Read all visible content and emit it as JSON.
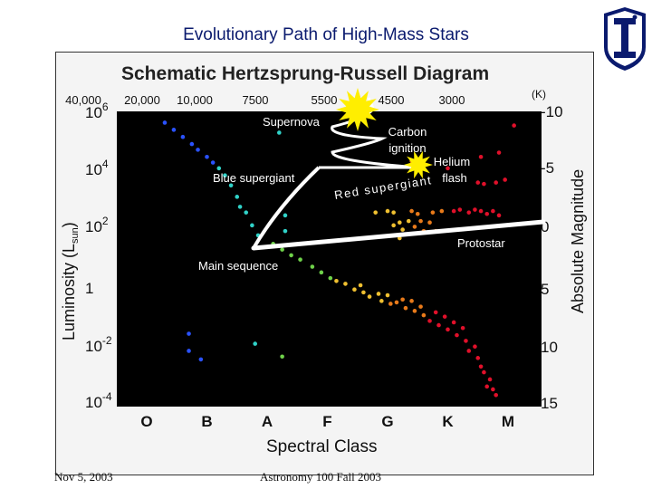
{
  "slide": {
    "title": "Evolutionary Path of High-Mass Stars",
    "footer_left": "Nov 5, 2003",
    "footer_center": "Astronomy 100 Fall 2003"
  },
  "chart_data": {
    "type": "scatter",
    "title": "Schematic Hertzsprung-Russell Diagram",
    "xlabel": "Spectral Class",
    "ylabel": "Luminosity (Lsun)",
    "ylabel_right": "Absolute Magnitude",
    "spectral_classes": [
      "O",
      "B",
      "A",
      "F",
      "G",
      "K",
      "M"
    ],
    "temperature_ticks": [
      "40,000",
      "20,000",
      "10,000",
      "7500",
      "5500",
      "4500",
      "3000"
    ],
    "temperature_unit": "(K)",
    "luminosity_ticks": [
      {
        "base": "10",
        "exp": "6"
      },
      {
        "base": "10",
        "exp": "4"
      },
      {
        "base": "10",
        "exp": "2"
      },
      {
        "base": "1",
        "exp": ""
      },
      {
        "base": "10",
        "exp": "-2"
      },
      {
        "base": "10",
        "exp": "-4"
      }
    ],
    "magnitude_ticks": [
      "-10",
      "-5",
      "0",
      "5",
      "10",
      "15"
    ],
    "annotations": [
      "Supernova",
      "Carbon ignition",
      "Helium flash",
      "Blue supergiant",
      "Red supergiant",
      "Protostar",
      "Main sequence"
    ],
    "colors": {
      "background": "#000000",
      "o_stars": "#2a52ff",
      "b_stars": "#30d2c8",
      "a_stars": "#6fd24a",
      "g_stars": "#f0b020",
      "k_stars": "#e8701a",
      "m_stars": "#e0102a",
      "path": "#ffffff",
      "burst": "#ffee00"
    },
    "point_groups": [
      {
        "name": "O",
        "color": "#2a52ff",
        "points": [
          [
            0.3,
            5.7
          ],
          [
            0.45,
            5.45
          ],
          [
            0.6,
            5.2
          ],
          [
            0.75,
            4.95
          ],
          [
            0.85,
            4.75
          ],
          [
            1.0,
            4.5
          ],
          [
            1.1,
            4.3
          ],
          [
            0.7,
            -1.7
          ],
          [
            0.7,
            -2.3
          ],
          [
            0.9,
            -2.6
          ]
        ]
      },
      {
        "name": "B",
        "color": "#30d2c8",
        "points": [
          [
            1.2,
            4.1
          ],
          [
            1.3,
            3.85
          ],
          [
            1.4,
            3.5
          ],
          [
            1.5,
            3.1
          ],
          [
            1.55,
            2.75
          ],
          [
            1.65,
            2.55
          ],
          [
            1.75,
            2.1
          ],
          [
            1.85,
            1.75
          ],
          [
            2.2,
            5.35
          ],
          [
            2.3,
            2.45
          ],
          [
            2.3,
            1.9
          ],
          [
            1.8,
            -2.05
          ]
        ]
      },
      {
        "name": "A",
        "color": "#6fd24a",
        "points": [
          [
            2.1,
            1.45
          ],
          [
            2.25,
            1.25
          ],
          [
            2.4,
            1.05
          ],
          [
            2.55,
            0.9
          ],
          [
            2.75,
            0.65
          ],
          [
            2.9,
            0.45
          ],
          [
            3.05,
            0.25
          ],
          [
            2.25,
            -2.5
          ]
        ]
      },
      {
        "name": "F",
        "color": "#f0c030",
        "points": [
          [
            3.15,
            0.15
          ],
          [
            3.3,
            0.05
          ],
          [
            3.45,
            -0.15
          ],
          [
            3.55,
            0.0
          ],
          [
            3.6,
            -0.25
          ],
          [
            3.7,
            -0.4
          ],
          [
            3.85,
            -0.3
          ],
          [
            3.9,
            -0.55
          ],
          [
            4.0,
            -0.35
          ],
          [
            3.8,
            2.55
          ],
          [
            4.0,
            2.6
          ],
          [
            4.1,
            2.1
          ],
          [
            4.2,
            2.2
          ],
          [
            4.25,
            1.95
          ],
          [
            4.35,
            2.25
          ],
          [
            4.1,
            2.55
          ],
          [
            4.2,
            1.65
          ]
        ]
      },
      {
        "name": "G",
        "color": "#e87a1a",
        "points": [
          [
            4.05,
            -0.65
          ],
          [
            4.15,
            -0.6
          ],
          [
            4.25,
            -0.5
          ],
          [
            4.3,
            -0.8
          ],
          [
            4.4,
            -0.55
          ],
          [
            4.45,
            -0.9
          ],
          [
            4.55,
            -0.75
          ],
          [
            4.6,
            -1.05
          ],
          [
            4.4,
            2.6
          ],
          [
            4.5,
            2.5
          ],
          [
            4.45,
            2.05
          ],
          [
            4.6,
            1.9
          ],
          [
            4.55,
            2.25
          ],
          [
            4.7,
            2.2
          ],
          [
            4.8,
            1.9
          ],
          [
            4.75,
            2.55
          ],
          [
            4.9,
            2.6
          ],
          [
            4.4,
            4.35
          ]
        ]
      },
      {
        "name": "M",
        "color": "#e0102a",
        "points": [
          [
            4.7,
            -1.25
          ],
          [
            4.8,
            -0.95
          ],
          [
            4.85,
            -1.4
          ],
          [
            4.95,
            -1.1
          ],
          [
            5.0,
            -1.55
          ],
          [
            5.1,
            -1.3
          ],
          [
            5.15,
            -1.75
          ],
          [
            5.25,
            -1.5
          ],
          [
            5.3,
            -1.95
          ],
          [
            5.35,
            -2.3
          ],
          [
            5.45,
            -2.15
          ],
          [
            5.5,
            -2.55
          ],
          [
            5.55,
            -2.85
          ],
          [
            5.6,
            -3.05
          ],
          [
            5.7,
            -3.3
          ],
          [
            5.75,
            -3.65
          ],
          [
            5.65,
            -3.55
          ],
          [
            5.8,
            -3.85
          ],
          [
            5.1,
            2.6
          ],
          [
            5.2,
            2.65
          ],
          [
            5.35,
            2.55
          ],
          [
            5.45,
            2.65
          ],
          [
            5.55,
            2.6
          ],
          [
            5.65,
            2.5
          ],
          [
            5.75,
            2.6
          ],
          [
            5.85,
            2.45
          ],
          [
            5.5,
            3.6
          ],
          [
            5.6,
            3.55
          ],
          [
            5.8,
            3.6
          ],
          [
            5.95,
            3.7
          ],
          [
            5.55,
            4.5
          ],
          [
            5.85,
            4.65
          ],
          [
            5.0,
            4.1
          ],
          [
            6.1,
            5.6
          ]
        ]
      }
    ],
    "xlim": [
      -0.5,
      6.5
    ],
    "ylim": [
      -4,
      6.3
    ],
    "grid": false,
    "legend": "none"
  }
}
